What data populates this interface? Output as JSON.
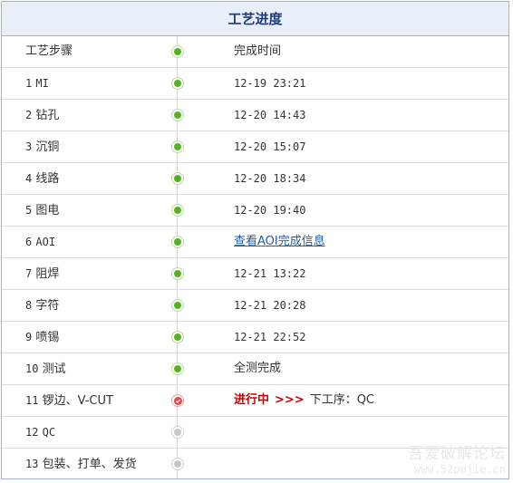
{
  "title": "工艺进度",
  "header_row": {
    "step": "工艺步骤",
    "time": "完成时间"
  },
  "steps": [
    {
      "num": "1",
      "name": "MI",
      "status": "done",
      "info": "12-19 23:21"
    },
    {
      "num": "2",
      "name": "钻孔",
      "status": "done",
      "info": "12-20 14:43"
    },
    {
      "num": "3",
      "name": "沉铜",
      "status": "done",
      "info": "12-20 15:07"
    },
    {
      "num": "4",
      "name": "线路",
      "status": "done",
      "info": "12-20 18:34"
    },
    {
      "num": "5",
      "name": "图电",
      "status": "done",
      "info": "12-20 19:40"
    },
    {
      "num": "6",
      "name": "AOI",
      "status": "done",
      "link": "查看AOI完成信息"
    },
    {
      "num": "7",
      "name": "阻焊",
      "status": "done",
      "info": "12-21 13:22"
    },
    {
      "num": "8",
      "name": "字符",
      "status": "done",
      "info": "12-21 20:28"
    },
    {
      "num": "9",
      "name": "喷锡",
      "status": "done",
      "info": "12-21 22:52"
    },
    {
      "num": "10",
      "name": "测试",
      "status": "done",
      "info": "全测完成"
    },
    {
      "num": "11",
      "name": "锣边、V-CUT",
      "status": "current",
      "progress_label": "进行中",
      "arrows": ">>>",
      "next_label": "下工序：QC"
    },
    {
      "num": "12",
      "name": "QC",
      "status": "pending",
      "info": ""
    },
    {
      "num": "13",
      "name": "包装、打单、发货",
      "status": "pending",
      "info": ""
    }
  ],
  "watermark": {
    "title": "吾爱破解论坛",
    "url": "www.52pojie.cn"
  },
  "colors": {
    "done": "#52b51f",
    "current": "#e04848",
    "pending": "#c7c7c7",
    "header_text": "#1d3c78"
  }
}
